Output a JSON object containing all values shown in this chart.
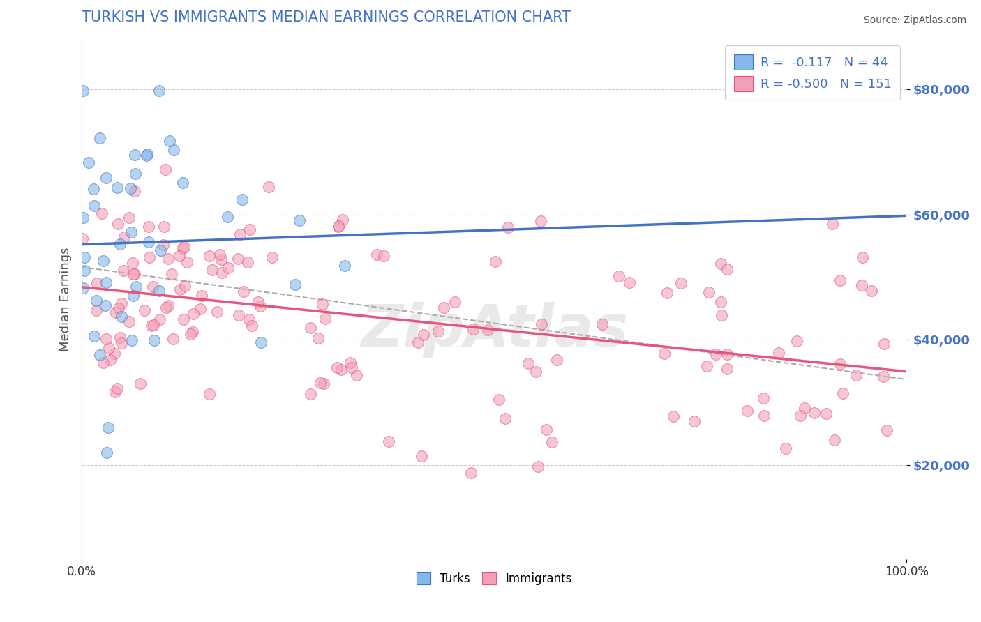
{
  "title": "TURKISH VS IMMIGRANTS MEDIAN EARNINGS CORRELATION CHART",
  "source_text": "Source: ZipAtlas.com",
  "ylabel": "Median Earnings",
  "watermark": "ZipAtlas",
  "x_min": 0.0,
  "x_max": 1.0,
  "y_min": 5000,
  "y_max": 88000,
  "yticks": [
    20000,
    40000,
    60000,
    80000
  ],
  "ytick_labels": [
    "$20,000",
    "$40,000",
    "$60,000",
    "$80,000"
  ],
  "xticks": [
    0.0,
    1.0
  ],
  "xtick_labels": [
    "0.0%",
    "100.0%"
  ],
  "turks_color": "#85b8ea",
  "immigrants_color": "#f2a0b8",
  "turks_line_color": "#4472c4",
  "immigrants_line_color": "#e8547a",
  "dashed_line_color": "#aaaaaa",
  "turks_R": -0.117,
  "turks_N": 44,
  "immigrants_R": -0.5,
  "immigrants_N": 151,
  "background_color": "#ffffff",
  "title_color": "#4472c4",
  "axis_label_color": "#555555",
  "ytick_color": "#4472c4",
  "grid_color": "#cccccc"
}
